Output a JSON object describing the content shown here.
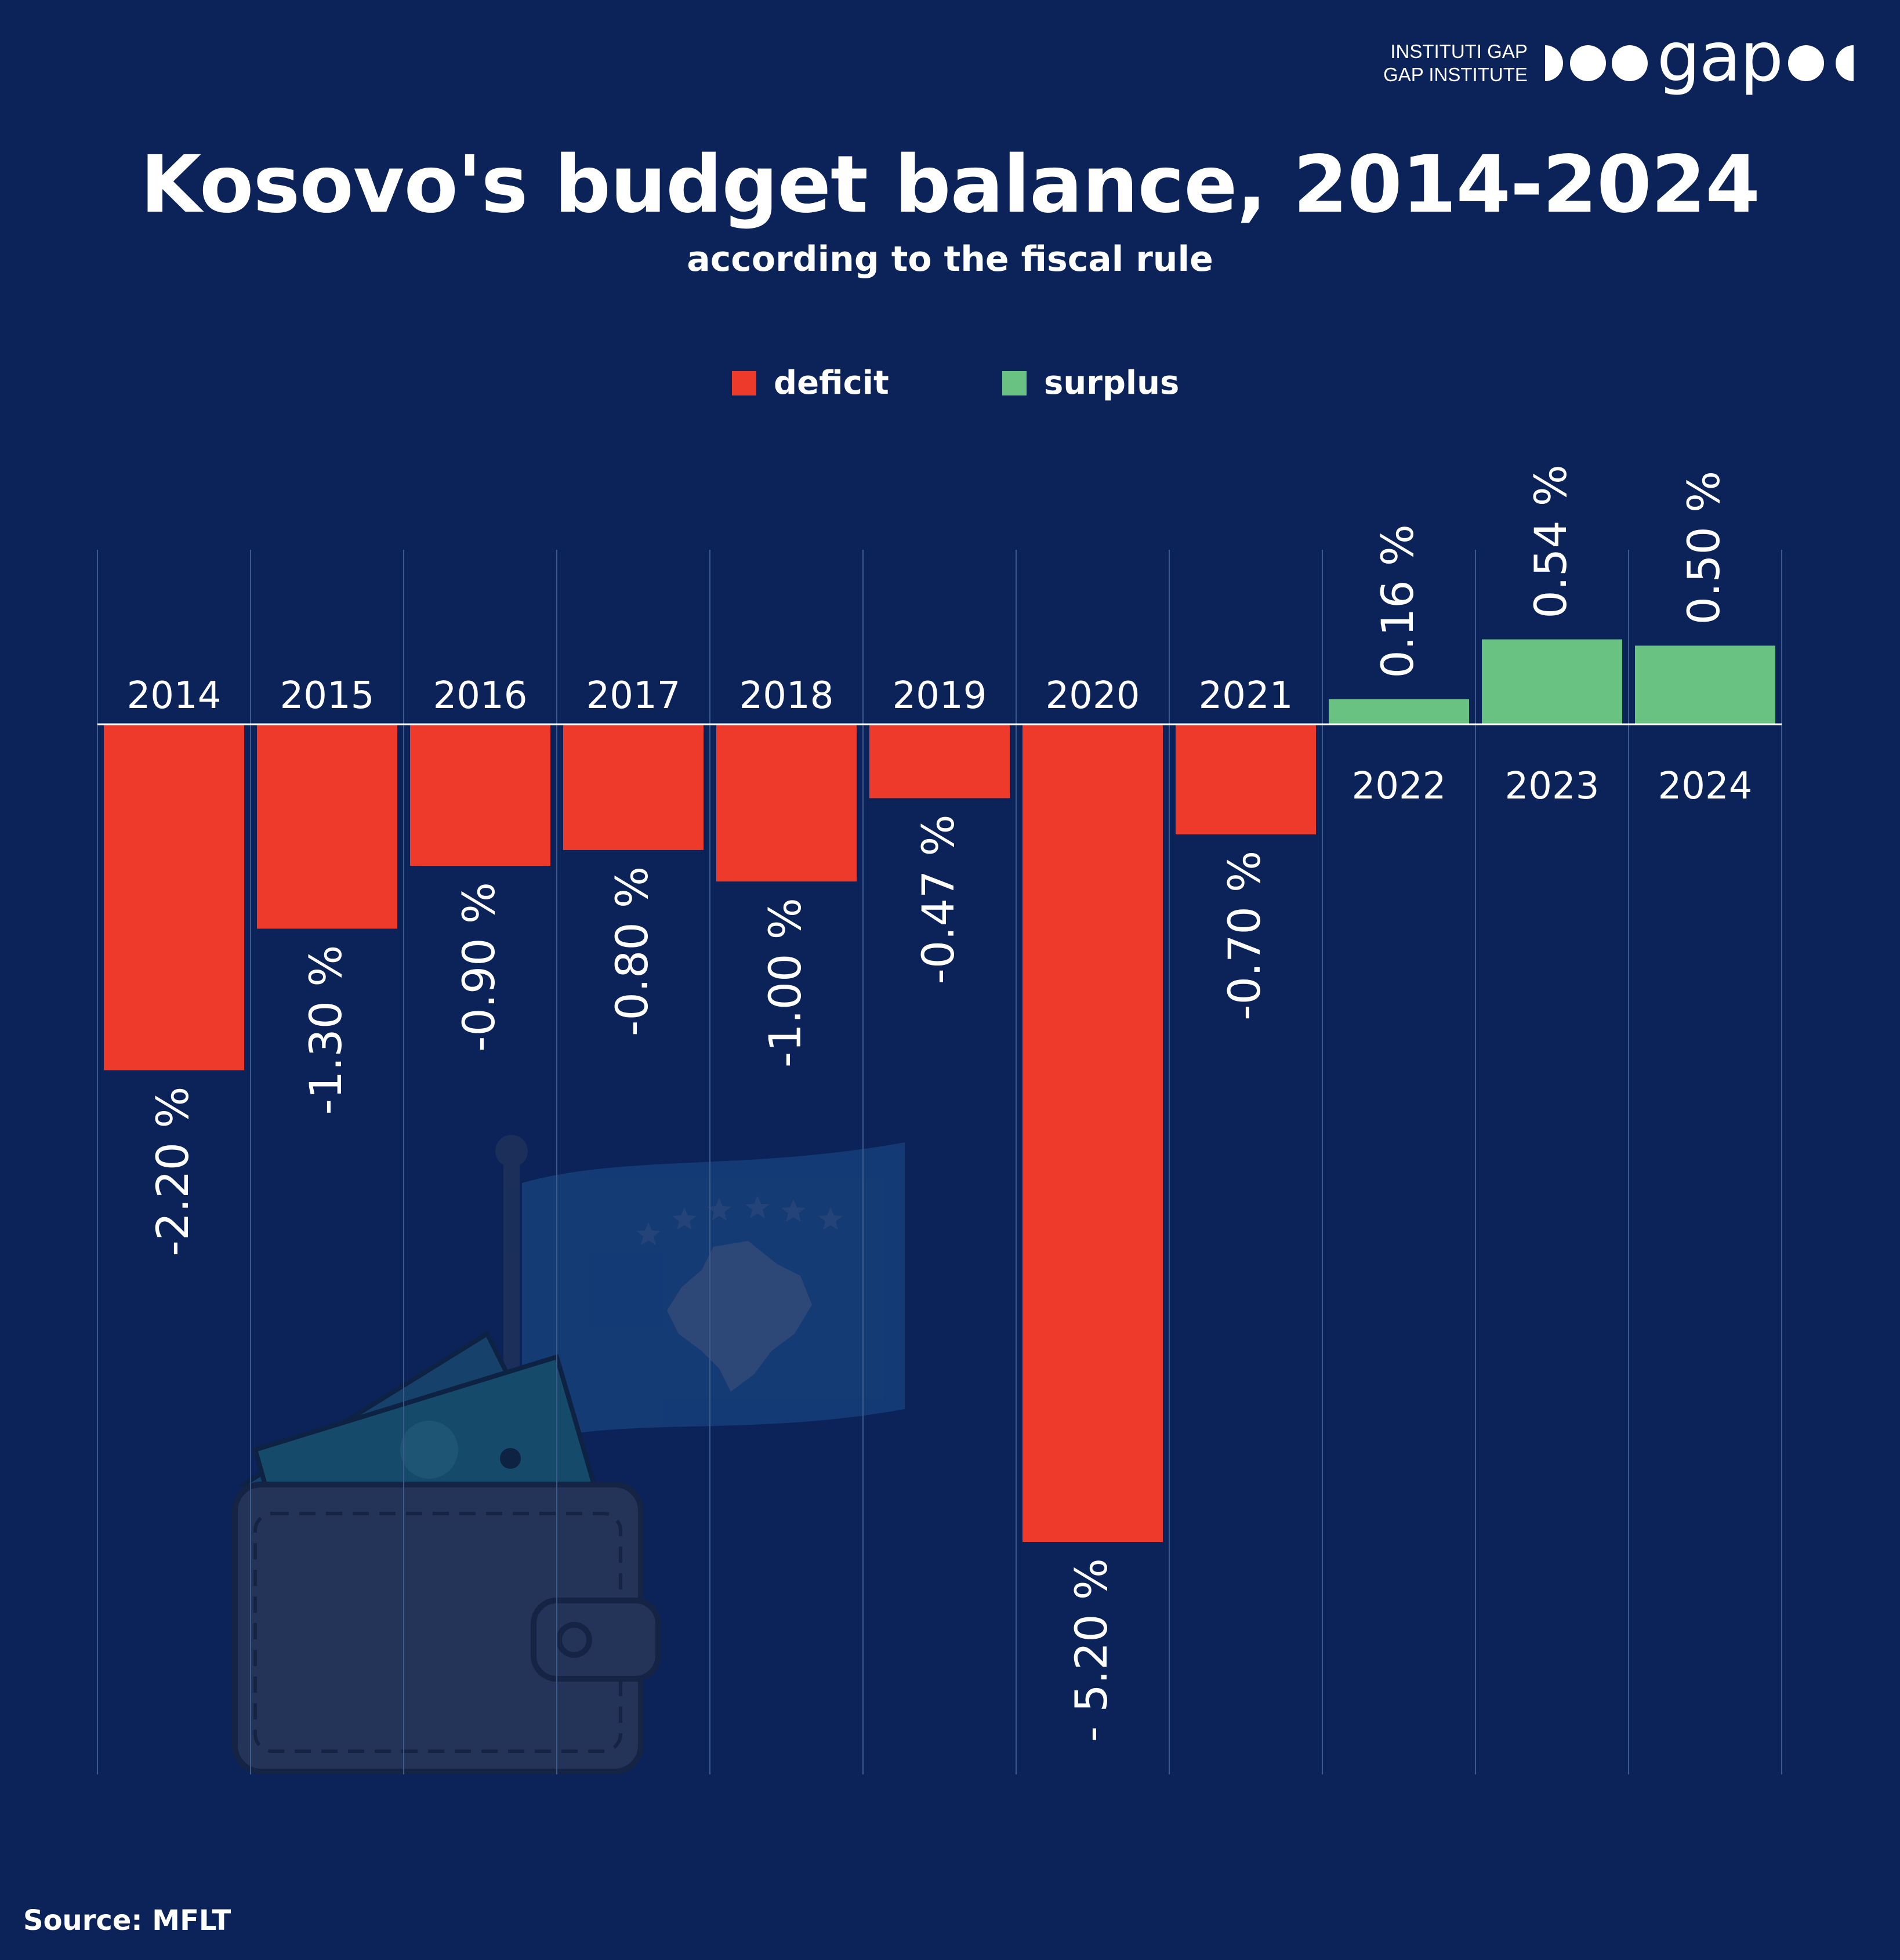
{
  "brand": {
    "tagline_line1": "INSTITUTI GAP",
    "tagline_line2": "GAP INSTITUTE",
    "wordmark": "gap",
    "icon": "gap-logo-circles"
  },
  "title": "Kosovo's budget balance, 2014-2024",
  "subtitle": "according to the fiscal rule",
  "legend": [
    {
      "label": "deficit",
      "color": "#ee3a2b"
    },
    {
      "label": "surplus",
      "color": "#6ac282"
    }
  ],
  "colors": {
    "background": "#0b2358",
    "deficit": "#ee3a2b",
    "surplus": "#6ac282"
  },
  "illustration": {
    "icons": [
      "kosovo-flag-icon",
      "wallet-icon",
      "banknotes-icon"
    ]
  },
  "chart_data": {
    "type": "bar",
    "categories": [
      "2014",
      "2015",
      "2016",
      "2017",
      "2018",
      "2019",
      "2020",
      "2021",
      "2022",
      "2023",
      "2024"
    ],
    "values": [
      -2.2,
      -1.3,
      -0.9,
      -0.8,
      -1.0,
      -0.47,
      -5.2,
      -0.7,
      0.16,
      0.54,
      0.5
    ],
    "value_labels": [
      "-2.20 %",
      "-1.30 %",
      "-0.90 %",
      "-0.80 %",
      "-1.00 %",
      "-0.47 %",
      "- 5.20 %",
      "-0.70 %",
      "0.16 %",
      "0.54 %",
      "0.50 %"
    ],
    "units": "%",
    "ylim": [
      -5.2,
      0.54
    ],
    "grid": "vertical separators",
    "legend_position": "top-center"
  },
  "source": "Source: MFLT"
}
